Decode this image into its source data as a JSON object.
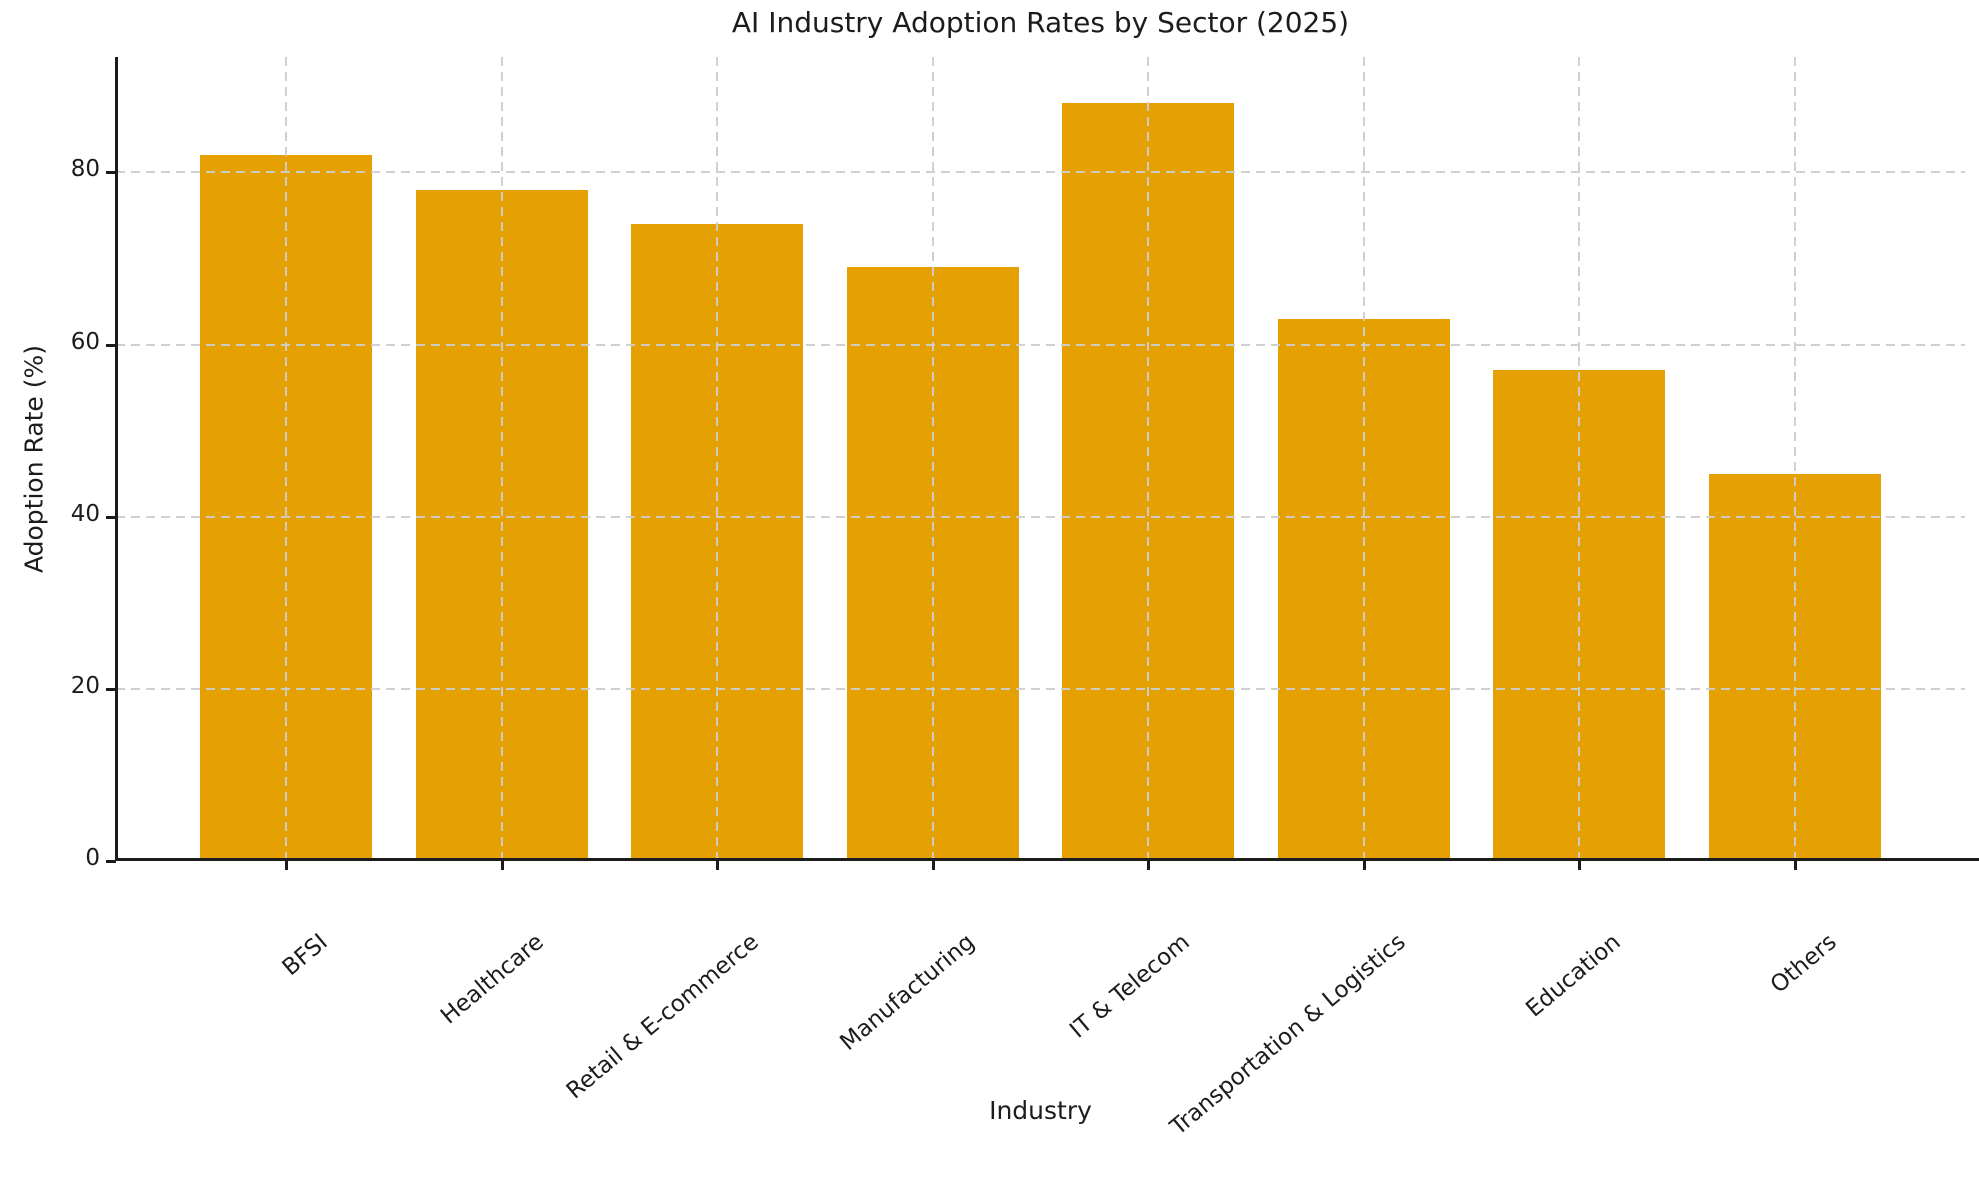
{
  "chart_data": {
    "type": "bar",
    "title": "AI Industry Adoption Rates by Sector (2025)",
    "xlabel": "Industry",
    "ylabel": "Adoption Rate (%)",
    "categories": [
      "BFSI",
      "Healthcare",
      "Retail & E-commerce",
      "Manufacturing",
      "IT & Telecom",
      "Transportation & Logistics",
      "Education",
      "Others"
    ],
    "values": [
      82,
      78,
      74,
      69,
      88,
      63,
      57,
      45
    ],
    "yticks": [
      0,
      20,
      40,
      60,
      80
    ],
    "ylim": [
      0,
      93.4
    ],
    "bar_color": "#E5A104",
    "grid": {
      "style": "dashed",
      "color": "#cdcdcd",
      "on_top_of_bars": true
    },
    "spines": [
      "left",
      "bottom"
    ],
    "legend_position": "none",
    "x_tick_rotation_deg": 40
  }
}
